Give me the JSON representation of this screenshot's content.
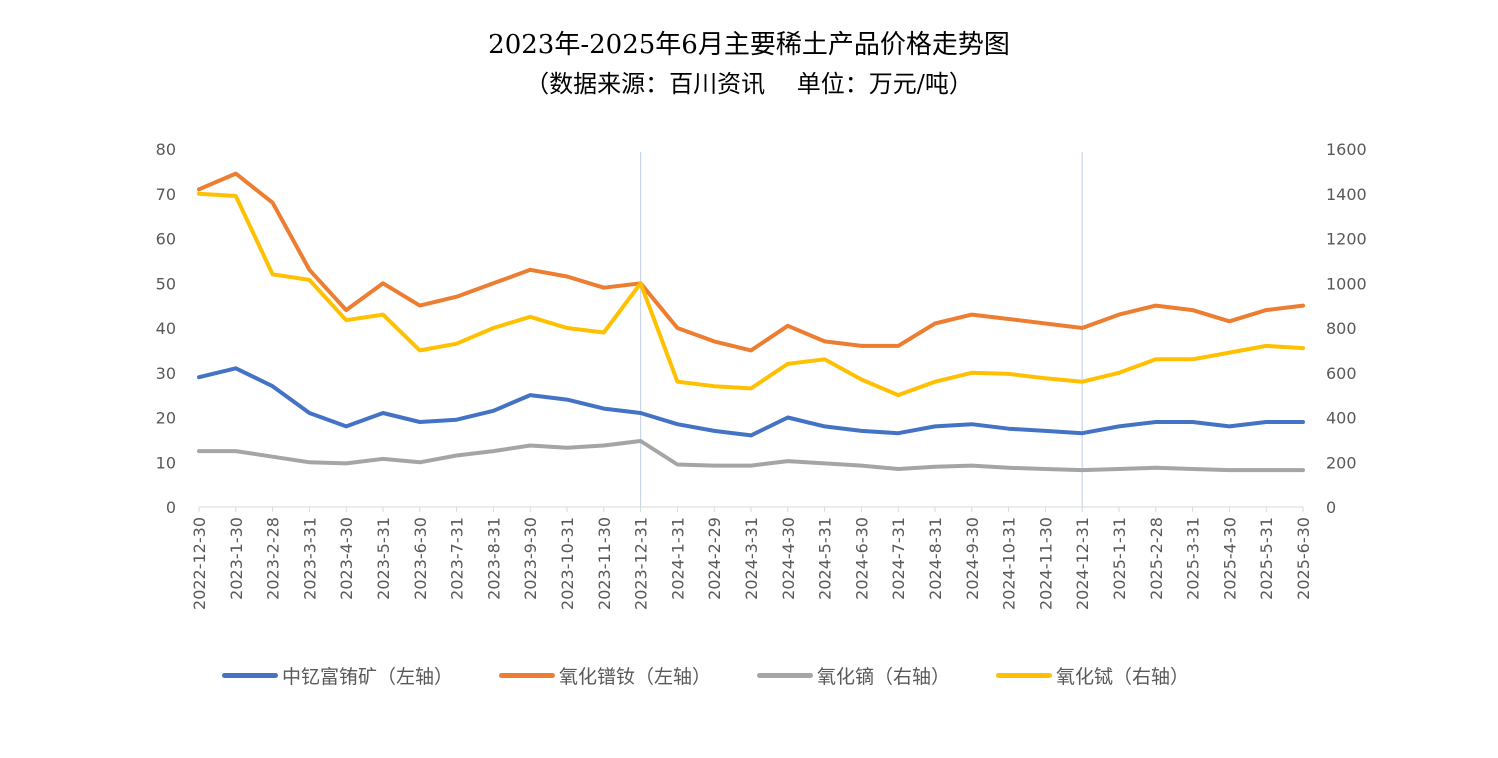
{
  "title": "2023年-2025年6月主要稀土产品价格走势图",
  "subtitle": "（数据来源：百川资讯　 单位：万元/吨）",
  "chart_data": {
    "type": "line",
    "title": "2023年-2025年6月主要稀土产品价格走势图",
    "subtitle": "（数据来源：百川资讯　 单位：万元/吨）",
    "categories": [
      "2022-12-30",
      "2023-1-30",
      "2023-2-28",
      "2023-3-31",
      "2023-4-30",
      "2023-5-31",
      "2023-6-30",
      "2023-7-31",
      "2023-8-31",
      "2023-9-30",
      "2023-10-31",
      "2023-11-30",
      "2023-12-31",
      "2024-1-31",
      "2024-2-29",
      "2024-3-31",
      "2024-4-30",
      "2024-5-31",
      "2024-6-30",
      "2024-7-31",
      "2024-8-31",
      "2024-9-30",
      "2024-10-31",
      "2024-11-30",
      "2024-12-31",
      "2025-1-31",
      "2025-2-28",
      "2025-3-31",
      "2025-4-30",
      "2025-5-31",
      "2025-6-30"
    ],
    "y_left": {
      "ylim": [
        0,
        80
      ],
      "ticks": [
        "0",
        "10",
        "20",
        "30",
        "40",
        "50",
        "60",
        "70",
        "80"
      ]
    },
    "y_right": {
      "ylim": [
        0,
        1600
      ],
      "ticks": [
        "0",
        "200",
        "400",
        "600",
        "800",
        "1000",
        "1200",
        "1400",
        "1600"
      ]
    },
    "grid": false,
    "legend_position": "bottom",
    "vertical_markers": [
      "2023-12-31",
      "2024-12-31"
    ],
    "series": [
      {
        "name": "中钇富铕矿（左轴）",
        "axis": "left",
        "color": "#4472C4",
        "values": [
          29,
          31,
          27,
          21,
          18,
          21,
          19,
          19.5,
          21.5,
          25,
          24,
          22,
          21,
          18.5,
          17,
          16,
          20,
          18,
          17,
          16.5,
          18,
          18.5,
          17.5,
          17,
          16.5,
          18,
          19,
          19,
          18,
          19,
          19
        ]
      },
      {
        "name": "氧化镨钕（左轴）",
        "axis": "left",
        "color": "#ED7D31",
        "values": [
          71,
          74.5,
          68,
          53,
          44,
          50,
          45,
          47,
          50,
          53,
          51.5,
          49,
          50,
          40,
          37,
          35,
          40.5,
          37,
          36,
          36,
          41,
          43,
          42,
          41,
          40,
          43,
          45,
          44,
          41.5,
          44,
          45
        ]
      },
      {
        "name": "氧化镝（右轴）",
        "axis": "right",
        "color": "#A5A5A5",
        "values": [
          250,
          250,
          225,
          200,
          195,
          215,
          200,
          230,
          250,
          275,
          265,
          275,
          295,
          190,
          185,
          185,
          205,
          195,
          185,
          170,
          180,
          185,
          175,
          170,
          165,
          170,
          175,
          170,
          165,
          165,
          165
        ]
      },
      {
        "name": "氧化铽（右轴）",
        "axis": "right",
        "color": "#FFC000",
        "values": [
          1400,
          1390,
          1040,
          1015,
          835,
          860,
          700,
          730,
          800,
          850,
          800,
          780,
          1000,
          560,
          540,
          530,
          640,
          660,
          570,
          500,
          560,
          600,
          595,
          575,
          560,
          600,
          660,
          660,
          690,
          720,
          710
        ]
      }
    ]
  }
}
